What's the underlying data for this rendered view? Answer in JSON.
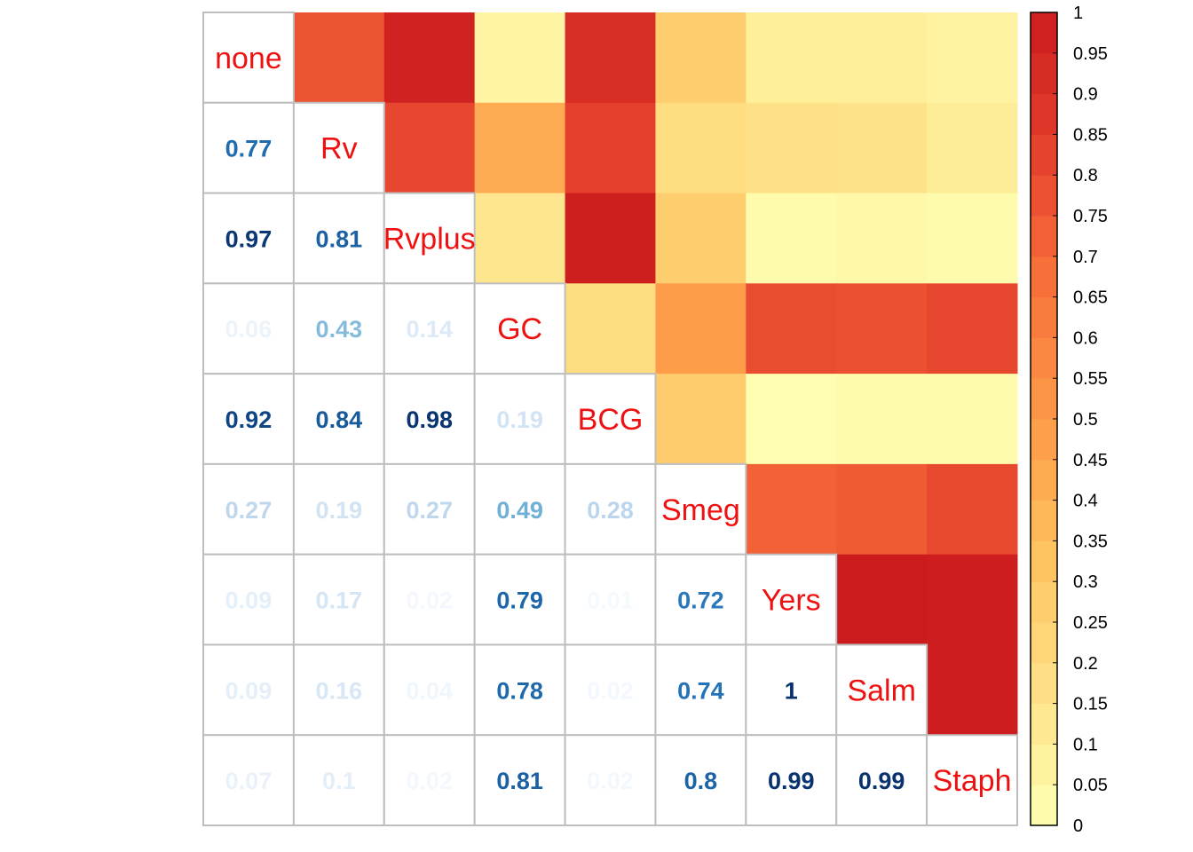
{
  "chart_data": {
    "type": "heatmap",
    "variables": [
      "none",
      "Rv",
      "Rvplus",
      "GC",
      "BCG",
      "Smeg",
      "Yers",
      "Salm",
      "Staph"
    ],
    "matrix": [
      [
        1,
        0.77,
        0.97,
        0.06,
        0.92,
        0.27,
        0.09,
        0.09,
        0.07
      ],
      [
        0.77,
        1,
        0.81,
        0.43,
        0.84,
        0.19,
        0.17,
        0.16,
        0.1
      ],
      [
        0.97,
        0.81,
        1,
        0.14,
        0.98,
        0.27,
        0.02,
        0.04,
        0.02
      ],
      [
        0.06,
        0.43,
        0.14,
        1,
        0.19,
        0.49,
        0.79,
        0.78,
        0.81
      ],
      [
        0.92,
        0.84,
        0.98,
        0.19,
        1,
        0.28,
        0.01,
        0.02,
        0.02
      ],
      [
        0.27,
        0.19,
        0.27,
        0.49,
        0.28,
        1,
        0.72,
        0.74,
        0.8
      ],
      [
        0.09,
        0.17,
        0.02,
        0.79,
        0.01,
        0.72,
        1,
        1,
        0.99
      ],
      [
        0.09,
        0.16,
        0.04,
        0.78,
        0.02,
        0.74,
        1,
        1,
        0.99
      ],
      [
        0.07,
        0.1,
        0.02,
        0.81,
        0.02,
        0.8,
        0.99,
        0.99,
        1
      ]
    ],
    "lower_labels": [
      [
        "0.77"
      ],
      [
        "0.97",
        "0.81"
      ],
      [
        "0.06",
        "0.43",
        "0.14"
      ],
      [
        "0.92",
        "0.84",
        "0.98",
        "0.19"
      ],
      [
        "0.27",
        "0.19",
        "0.27",
        "0.49",
        "0.28"
      ],
      [
        "0.09",
        "0.17",
        "0.02",
        "0.79",
        "0.01",
        "0.72"
      ],
      [
        "0.09",
        "0.16",
        "0.04",
        "0.78",
        "0.02",
        "0.74",
        "1"
      ],
      [
        "0.07",
        "0.1",
        "0.02",
        "0.81",
        "0.02",
        "0.8",
        "0.99",
        "0.99"
      ]
    ],
    "colorbar": {
      "range": [
        0,
        1
      ],
      "ticks": [
        "0",
        "0.05",
        "0.1",
        "0.15",
        "0.2",
        "0.25",
        "0.3",
        "0.35",
        "0.4",
        "0.45",
        "0.5",
        "0.55",
        "0.6",
        "0.65",
        "0.7",
        "0.75",
        "0.8",
        "0.85",
        "0.9",
        "0.95",
        "1"
      ],
      "palette": [
        "#FFFFB2",
        "#FEE187",
        "#FEC25F",
        "#FD9A48",
        "#F8723A",
        "#E4402D",
        "#CB1B1D"
      ]
    },
    "diagonal_text_color": "#EE1111",
    "lower_text_palette": [
      "#F7FBFF",
      "#C6DBEF",
      "#6BAED6",
      "#2171B5",
      "#08306B"
    ]
  }
}
